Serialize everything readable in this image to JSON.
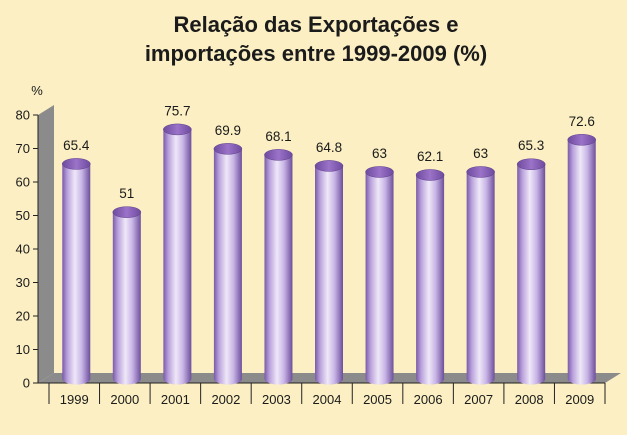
{
  "chart_data": {
    "type": "bar",
    "title_lines": [
      "Relação das Exportações e",
      "importações entre 1999-2009 (%)"
    ],
    "ylabel": "%",
    "xlabel": "",
    "categories": [
      "1999",
      "2000",
      "2001",
      "2002",
      "2003",
      "2004",
      "2005",
      "2006",
      "2007",
      "2008",
      "2009"
    ],
    "values": [
      65.4,
      51,
      75.7,
      69.9,
      68.1,
      64.8,
      63,
      62.1,
      63,
      65.3,
      72.6
    ],
    "data_labels": [
      "65.4",
      "51",
      "75.7",
      "69.9",
      "68.1",
      "64.8",
      "63",
      "62.1",
      "63",
      "65.3",
      "72.6"
    ],
    "ylim": [
      0,
      80
    ],
    "yticks": [
      "0",
      "10",
      "20",
      "30",
      "40",
      "50",
      "60",
      "70",
      "80"
    ],
    "grid": false,
    "legend": "none",
    "style": "3d-cylinder"
  },
  "colors": {
    "background": "#fbefc3",
    "bar_light": "#ece4f6",
    "bar_mid": "#b79fd9",
    "bar_dark": "#6d4f9b",
    "bar_top": "#8a62b8",
    "floor": "#8b8b8b",
    "wall": "#8b8b8b",
    "text": "#1b1b1b"
  }
}
